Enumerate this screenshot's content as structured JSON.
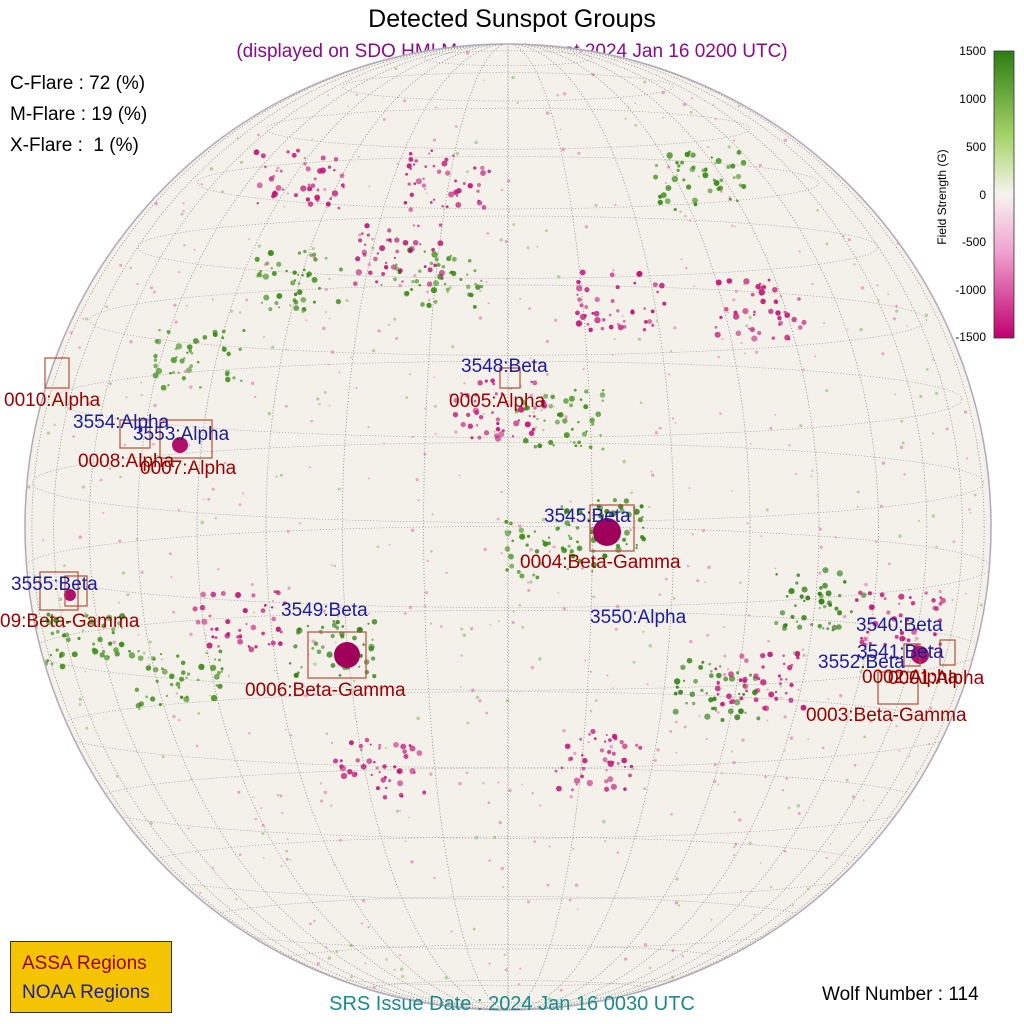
{
  "title": "Detected Sunspot Groups",
  "subtitle": "(displayed on SDO HMI Magnetogram at 2024 Jan 16 0200 UTC)",
  "flare_probs": [
    "C-Flare : 72 (%)",
    "M-Flare : 19 (%)",
    "X-Flare :  1 (%)"
  ],
  "colorbar": {
    "label": "Field Strength (G)",
    "ticks": [
      "1500",
      "1000",
      "500",
      "0",
      "-500",
      "-1000",
      "-1500"
    ],
    "colors": {
      "positive": "#2e7d12",
      "zero": "#f7f4ef",
      "negative": "#c0006e"
    }
  },
  "legend": {
    "assa": "ASSA Regions",
    "noaa": "NOAA Regions"
  },
  "colors": {
    "assa_label": "#9b0000",
    "noaa_label": "#1c1c9c",
    "box": "#b0503a",
    "legend_bg": "#f5c400"
  },
  "srs_issue": "SRS Issue Date : 2024 Jan 16 0030 UTC",
  "wolf_number": "Wolf Number : 114",
  "noaa_regions": [
    "3548:Beta",
    "3554:Alpha",
    "3553:Alpha",
    "3545:Beta",
    "3555:Beta",
    "3549:Beta",
    "3550:Alpha",
    "3540:Beta",
    "3541:Beta",
    "3552:Beta"
  ],
  "assa_regions": [
    "0010:Alpha",
    "0005:Alpha",
    "0008:Alpha",
    "0007:Alpha",
    "0004:Beta-Gamma",
    "09:Beta-Gamma",
    "0006:Beta-Gamma",
    "0003:Beta-Gamma",
    "0002:Alpha",
    "0001:Alpha"
  ]
}
